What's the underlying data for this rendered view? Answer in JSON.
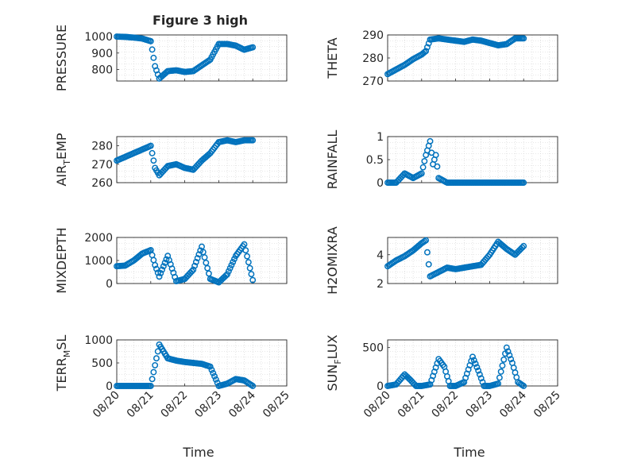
{
  "figure": {
    "title": "Figure 3 high",
    "marker_color": "#0072bd",
    "background": "#ffffff",
    "axis_color": "#262626",
    "grid_color": "#d0d0d0"
  },
  "chart_data": [
    {
      "type": "scatter",
      "marker": "circle",
      "grid": true,
      "title": "Figure 3 high",
      "ylabel": "PRESSURE",
      "xlabel": "",
      "xlim": [
        "08/20",
        "08/25"
      ],
      "ylim": [
        730,
        1010
      ],
      "yticks": [
        800,
        900,
        1000
      ],
      "x": [
        "08/20 00:00",
        "08/20 06:00",
        "08/20 12:00",
        "08/20 18:00",
        "08/21 00:00",
        "08/21 03:00",
        "08/21 06:00",
        "08/21 12:00",
        "08/21 18:00",
        "08/22 00:00",
        "08/22 06:00",
        "08/22 12:00",
        "08/22 18:00",
        "08/23 00:00",
        "08/23 06:00",
        "08/23 12:00",
        "08/23 18:00",
        "08/24 00:00"
      ],
      "y": [
        1000,
        998,
        994,
        988,
        972,
        820,
        745,
        790,
        795,
        785,
        790,
        825,
        860,
        955,
        955,
        945,
        920,
        935
      ]
    },
    {
      "type": "scatter",
      "marker": "circle",
      "grid": true,
      "ylabel": "THETA",
      "xlabel": "",
      "xlim": [
        "08/20",
        "08/25"
      ],
      "ylim": [
        270,
        290
      ],
      "yticks": [
        270,
        280,
        290
      ],
      "x": [
        "08/20 00:00",
        "08/20 06:00",
        "08/20 12:00",
        "08/20 18:00",
        "08/21 00:00",
        "08/21 03:00",
        "08/21 06:00",
        "08/21 12:00",
        "08/21 18:00",
        "08/22 00:00",
        "08/22 06:00",
        "08/22 12:00",
        "08/22 18:00",
        "08/23 00:00",
        "08/23 06:00",
        "08/23 12:00",
        "08/23 18:00",
        "08/24 00:00"
      ],
      "y": [
        273,
        275,
        277,
        279.5,
        281.5,
        283,
        288,
        288.5,
        288,
        287.5,
        287,
        288,
        287.5,
        286.5,
        285.5,
        286,
        288.5,
        288.5
      ]
    },
    {
      "type": "scatter",
      "marker": "circle",
      "grid": true,
      "ylabel": "AIR_TEMP",
      "xlabel": "",
      "xlim": [
        "08/20",
        "08/25"
      ],
      "ylim": [
        260,
        285
      ],
      "yticks": [
        260,
        270,
        280
      ],
      "x": [
        "08/20 00:00",
        "08/20 06:00",
        "08/20 12:00",
        "08/20 18:00",
        "08/21 00:00",
        "08/21 03:00",
        "08/21 06:00",
        "08/21 12:00",
        "08/21 18:00",
        "08/22 00:00",
        "08/22 06:00",
        "08/22 12:00",
        "08/22 18:00",
        "08/23 00:00",
        "08/23 06:00",
        "08/23 12:00",
        "08/23 18:00",
        "08/24 00:00"
      ],
      "y": [
        272,
        274,
        276,
        278,
        280,
        268,
        264,
        269,
        270,
        268,
        267,
        272,
        276,
        282,
        283,
        282,
        283,
        283
      ]
    },
    {
      "type": "scatter",
      "marker": "circle",
      "grid": true,
      "ylabel": "RAINFALL",
      "xlabel": "",
      "xlim": [
        "08/20",
        "08/25"
      ],
      "ylim": [
        0,
        1
      ],
      "yticks": [
        0,
        0.5,
        1
      ],
      "x": [
        "08/20 00:00",
        "08/20 06:00",
        "08/20 12:00",
        "08/20 18:00",
        "08/21 00:00",
        "08/21 03:00",
        "08/21 06:00",
        "08/21 08:00",
        "08/21 10:00",
        "08/21 12:00",
        "08/21 18:00",
        "08/22 00:00",
        "08/22 12:00",
        "08/23 00:00",
        "08/23 12:00",
        "08/24 00:00"
      ],
      "y": [
        0,
        0,
        0.2,
        0.1,
        0.2,
        0.6,
        0.9,
        0.4,
        0.6,
        0.1,
        0,
        0,
        0,
        0,
        0,
        0
      ]
    },
    {
      "type": "scatter",
      "marker": "circle",
      "grid": true,
      "ylabel": "MIXDEPTH",
      "xlabel": "",
      "xlim": [
        "08/20",
        "08/25"
      ],
      "ylim": [
        0,
        2000
      ],
      "yticks": [
        0,
        1000,
        2000
      ],
      "x": [
        "08/20 00:00",
        "08/20 06:00",
        "08/20 12:00",
        "08/20 18:00",
        "08/21 00:00",
        "08/21 03:00",
        "08/21 06:00",
        "08/21 12:00",
        "08/21 18:00",
        "08/22 00:00",
        "08/22 06:00",
        "08/22 12:00",
        "08/22 18:00",
        "08/23 00:00",
        "08/23 06:00",
        "08/23 12:00",
        "08/23 18:00",
        "08/24 00:00"
      ],
      "y": [
        750,
        780,
        1000,
        1300,
        1450,
        800,
        300,
        1200,
        100,
        200,
        600,
        1600,
        200,
        50,
        400,
        1200,
        1700,
        150
      ]
    },
    {
      "type": "scatter",
      "marker": "circle",
      "grid": true,
      "ylabel": "H2OMIXRA",
      "xlabel": "",
      "xlim": [
        "08/20",
        "08/25"
      ],
      "ylim": [
        2,
        5.2
      ],
      "yticks": [
        2,
        4
      ],
      "x": [
        "08/20 00:00",
        "08/20 06:00",
        "08/20 12:00",
        "08/20 18:00",
        "08/21 00:00",
        "08/21 03:00",
        "08/21 06:00",
        "08/21 12:00",
        "08/21 18:00",
        "08/22 00:00",
        "08/22 06:00",
        "08/22 12:00",
        "08/22 18:00",
        "08/23 00:00",
        "08/23 06:00",
        "08/23 12:00",
        "08/23 18:00",
        "08/24 00:00"
      ],
      "y": [
        3.2,
        3.6,
        3.9,
        4.3,
        4.8,
        5.0,
        2.5,
        2.8,
        3.1,
        3.0,
        3.1,
        3.2,
        3.3,
        4.0,
        4.9,
        4.4,
        4.0,
        4.6
      ]
    },
    {
      "type": "scatter",
      "marker": "circle",
      "grid": true,
      "ylabel": "TERR_MSL",
      "xlabel": "Time",
      "xlim": [
        "08/20",
        "08/25"
      ],
      "ylim": [
        0,
        1000
      ],
      "yticks": [
        0,
        500,
        1000
      ],
      "xticks": [
        "08/20",
        "08/21",
        "08/22",
        "08/23",
        "08/24",
        "08/25"
      ],
      "x": [
        "08/20 00:00",
        "08/20 06:00",
        "08/20 12:00",
        "08/20 18:00",
        "08/21 00:00",
        "08/21 03:00",
        "08/21 06:00",
        "08/21 12:00",
        "08/21 18:00",
        "08/22 00:00",
        "08/22 06:00",
        "08/22 12:00",
        "08/22 18:00",
        "08/23 00:00",
        "08/23 06:00",
        "08/23 12:00",
        "08/23 18:00",
        "08/24 00:00"
      ],
      "y": [
        0,
        0,
        0,
        0,
        0,
        450,
        900,
        600,
        550,
        520,
        500,
        480,
        420,
        0,
        50,
        150,
        120,
        0
      ]
    },
    {
      "type": "scatter",
      "marker": "circle",
      "grid": true,
      "ylabel": "SUN_FLUX",
      "xlabel": "Time",
      "xlim": [
        "08/20",
        "08/25"
      ],
      "ylim": [
        0,
        600
      ],
      "yticks": [
        0,
        500
      ],
      "xticks": [
        "08/20",
        "08/21",
        "08/22",
        "08/23",
        "08/24",
        "08/25"
      ],
      "x": [
        "08/20 00:00",
        "08/20 06:00",
        "08/20 12:00",
        "08/20 16:00",
        "08/20 20:00",
        "08/21 00:00",
        "08/21 06:00",
        "08/21 12:00",
        "08/21 16:00",
        "08/21 20:00",
        "08/22 00:00",
        "08/22 06:00",
        "08/22 12:00",
        "08/22 16:00",
        "08/22 20:00",
        "08/23 00:00",
        "08/23 06:00",
        "08/23 12:00",
        "08/23 16:00",
        "08/23 20:00",
        "08/24 00:00"
      ],
      "y": [
        0,
        20,
        150,
        80,
        0,
        0,
        20,
        350,
        250,
        0,
        0,
        50,
        380,
        200,
        0,
        0,
        30,
        500,
        300,
        50,
        0
      ]
    }
  ]
}
